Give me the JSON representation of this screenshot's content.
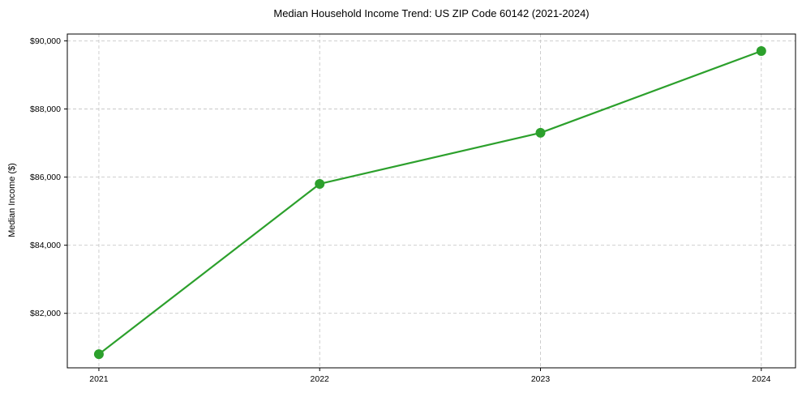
{
  "chart_data": {
    "type": "line",
    "title": "Median Household Income Trend: US ZIP Code 60142 (2021-2024)",
    "xlabel": "",
    "ylabel": "Median Income ($)",
    "x": [
      2021,
      2022,
      2023,
      2024
    ],
    "series": [
      {
        "name": "Median Household Income",
        "values": [
          80800,
          85800,
          87300,
          89700
        ],
        "color": "#2ca02c",
        "marker": "circle",
        "marker_size": 6,
        "line_width": 2.2
      }
    ],
    "xticks": {
      "values": [
        2021,
        2022,
        2023,
        2024
      ],
      "labels": [
        "2021",
        "2022",
        "2023",
        "2024"
      ]
    },
    "yticks": {
      "values": [
        82000,
        84000,
        86000,
        88000,
        90000
      ],
      "labels": [
        "$82,000",
        "$84,000",
        "$86,000",
        "$88,000",
        "$90,000"
      ]
    },
    "xlim": [
      2020.857,
      2024.155
    ],
    "ylim": [
      80400,
      90200
    ],
    "grid": true,
    "grid_style": "dashed",
    "legend": null,
    "colors": {
      "line": "#2ca02c",
      "grid": "#c9c9c9",
      "axis": "#000000",
      "background": "#ffffff",
      "text": "#000000"
    }
  }
}
